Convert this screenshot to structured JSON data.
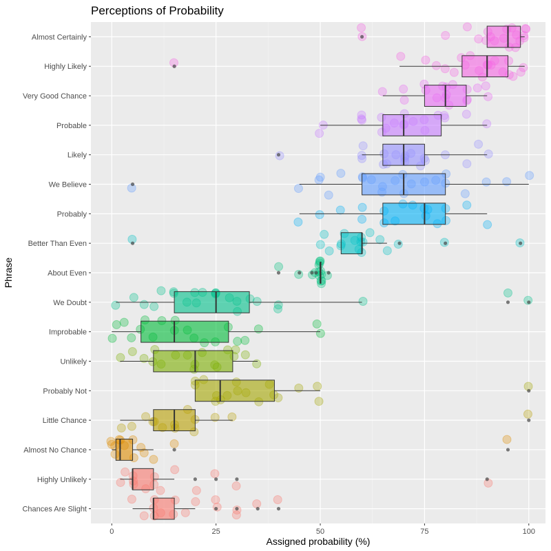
{
  "chart_data": {
    "type": "boxplot",
    "title": "Perceptions of Probability",
    "xlabel": "Assigned probability (%)",
    "ylabel": "Phrase",
    "xlim": [
      -5,
      104
    ],
    "xticks": [
      0,
      25,
      50,
      75,
      100
    ],
    "grid": true,
    "legend": "none",
    "categories": [
      {
        "label": "Almost Certainly",
        "color": "#F564E3",
        "min": 90,
        "q1": 90,
        "median": 95,
        "q3": 98,
        "max": 99,
        "outliers": [
          60
        ],
        "points": [
          60,
          60,
          80,
          85,
          88,
          90,
          90,
          91,
          92,
          94,
          95,
          95,
          96,
          97,
          97,
          98,
          99,
          99,
          99,
          99
        ]
      },
      {
        "label": "Highly Likely",
        "color": "#F564E3",
        "min": 69,
        "q1": 84,
        "median": 90,
        "q3": 95,
        "max": 99,
        "outliers": [
          15
        ],
        "points": [
          15,
          69,
          75,
          78,
          80,
          82,
          84,
          85,
          86,
          88,
          89,
          90,
          90,
          91,
          92,
          94,
          95,
          95,
          96,
          98,
          99
        ]
      },
      {
        "label": "Very Good Chance",
        "color": "#E76BF3",
        "min": 65,
        "q1": 75,
        "median": 80,
        "q3": 85,
        "max": 90,
        "outliers": [],
        "points": [
          65,
          70,
          70,
          75,
          75,
          78,
          79,
          80,
          80,
          80,
          81,
          82,
          85,
          85,
          85,
          88,
          90,
          90
        ]
      },
      {
        "label": "Probable",
        "color": "#C77CFF",
        "min": 50,
        "q1": 65,
        "median": 70,
        "q3": 79,
        "max": 90,
        "outliers": [],
        "points": [
          50,
          51,
          60,
          60,
          60,
          65,
          65,
          66,
          68,
          70,
          70,
          70,
          72,
          75,
          75,
          78,
          80,
          80,
          85,
          90
        ]
      },
      {
        "label": "Likely",
        "color": "#9590FF",
        "min": 60,
        "q1": 65,
        "median": 70,
        "q3": 75,
        "max": 90,
        "outliers": [
          40
        ],
        "points": [
          40,
          60,
          60,
          60,
          65,
          65,
          66,
          68,
          70,
          70,
          70,
          72,
          74,
          75,
          75,
          80,
          85,
          88,
          90
        ]
      },
      {
        "label": "We Believe",
        "color": "#619CFF",
        "min": 45,
        "q1": 60,
        "median": 70,
        "q3": 80,
        "max": 100,
        "outliers": [
          5
        ],
        "points": [
          5,
          45,
          50,
          50,
          52,
          55,
          60,
          60,
          62,
          65,
          65,
          68,
          70,
          70,
          72,
          75,
          78,
          80,
          80,
          85,
          90,
          95,
          100
        ]
      },
      {
        "label": "Probably",
        "color": "#00B0F6",
        "min": 45,
        "q1": 65,
        "median": 75,
        "q3": 80,
        "max": 90,
        "outliers": [],
        "points": [
          45,
          50,
          55,
          60,
          60,
          65,
          65,
          68,
          70,
          72,
          75,
          75,
          76,
          78,
          80,
          80,
          85,
          90
        ]
      },
      {
        "label": "Better Than Even",
        "color": "#00BFC4",
        "min": 55,
        "q1": 55,
        "median": 60,
        "q3": 60,
        "max": 66,
        "outliers": [
          5,
          69,
          80,
          98
        ],
        "points": [
          5,
          50,
          51,
          52,
          55,
          55,
          56,
          58,
          59,
          60,
          60,
          60,
          60,
          62,
          64,
          66,
          69,
          80,
          98
        ]
      },
      {
        "label": "About Even",
        "color": "#00BF7D",
        "min": 50,
        "q1": 50,
        "median": 50,
        "q3": 50,
        "max": 50,
        "outliers": [
          40,
          45,
          48,
          49,
          52
        ],
        "points": [
          40,
          45,
          48,
          49,
          50,
          50,
          50,
          50,
          50,
          50,
          50,
          50,
          50,
          50,
          50,
          52
        ]
      },
      {
        "label": "We Doubt",
        "color": "#00C08B",
        "min": 1,
        "q1": 15,
        "median": 25,
        "q3": 33,
        "max": 60,
        "outliers": [
          95,
          100
        ],
        "points": [
          1,
          5,
          8,
          10,
          12,
          15,
          15,
          18,
          20,
          20,
          22,
          25,
          25,
          25,
          28,
          30,
          30,
          33,
          35,
          40,
          40,
          60,
          95,
          100
        ]
      },
      {
        "label": "Improbable",
        "color": "#00BA38",
        "min": 0,
        "q1": 7,
        "median": 15,
        "q3": 28,
        "max": 50,
        "outliers": [],
        "points": [
          0,
          1,
          3,
          5,
          7,
          8,
          10,
          12,
          15,
          15,
          18,
          20,
          22,
          25,
          28,
          30,
          32,
          35,
          49,
          50
        ]
      },
      {
        "label": "Unlikely",
        "color": "#7CAE00",
        "min": 2,
        "q1": 10,
        "median": 20,
        "q3": 29,
        "max": 35,
        "outliers": [],
        "points": [
          2,
          5,
          8,
          10,
          10,
          12,
          15,
          18,
          20,
          20,
          22,
          25,
          25,
          28,
          29,
          30,
          32,
          35
        ]
      },
      {
        "label": "Probably Not",
        "color": "#A3A500",
        "min": 20,
        "q1": 20,
        "median": 26,
        "q3": 39,
        "max": 50,
        "outliers": [
          100
        ],
        "points": [
          20,
          20,
          22,
          25,
          25,
          26,
          28,
          30,
          30,
          32,
          35,
          38,
          39,
          40,
          45,
          49,
          50,
          100
        ]
      },
      {
        "label": "Little Chance",
        "color": "#B79F00",
        "min": 2,
        "q1": 10,
        "median": 15,
        "q3": 20,
        "max": 29,
        "outliers": [
          100
        ],
        "points": [
          2,
          5,
          8,
          10,
          10,
          12,
          15,
          15,
          18,
          20,
          20,
          25,
          29,
          100
        ]
      },
      {
        "label": "Almost No Chance",
        "color": "#DE8C00",
        "min": 0,
        "q1": 1,
        "median": 2,
        "q3": 5,
        "max": 10,
        "outliers": [
          15,
          95
        ],
        "points": [
          0,
          0,
          1,
          1,
          2,
          2,
          3,
          5,
          5,
          7,
          8,
          10,
          15,
          95
        ]
      },
      {
        "label": "Highly Unlikely",
        "color": "#F8766D",
        "min": 2,
        "q1": 5,
        "median": 5,
        "q3": 10,
        "max": 15,
        "outliers": [
          20,
          25,
          30,
          90
        ],
        "points": [
          2,
          3,
          5,
          5,
          5,
          8,
          10,
          10,
          12,
          15,
          20,
          25,
          30,
          90
        ]
      },
      {
        "label": "Chances Are Slight",
        "color": "#F8766D",
        "min": 5,
        "q1": 10,
        "median": 10,
        "q3": 15,
        "max": 20,
        "outliers": [
          25,
          30,
          35,
          40
        ],
        "points": [
          5,
          8,
          10,
          10,
          10,
          12,
          15,
          15,
          18,
          20,
          25,
          25,
          30,
          30,
          35,
          40
        ]
      }
    ]
  }
}
